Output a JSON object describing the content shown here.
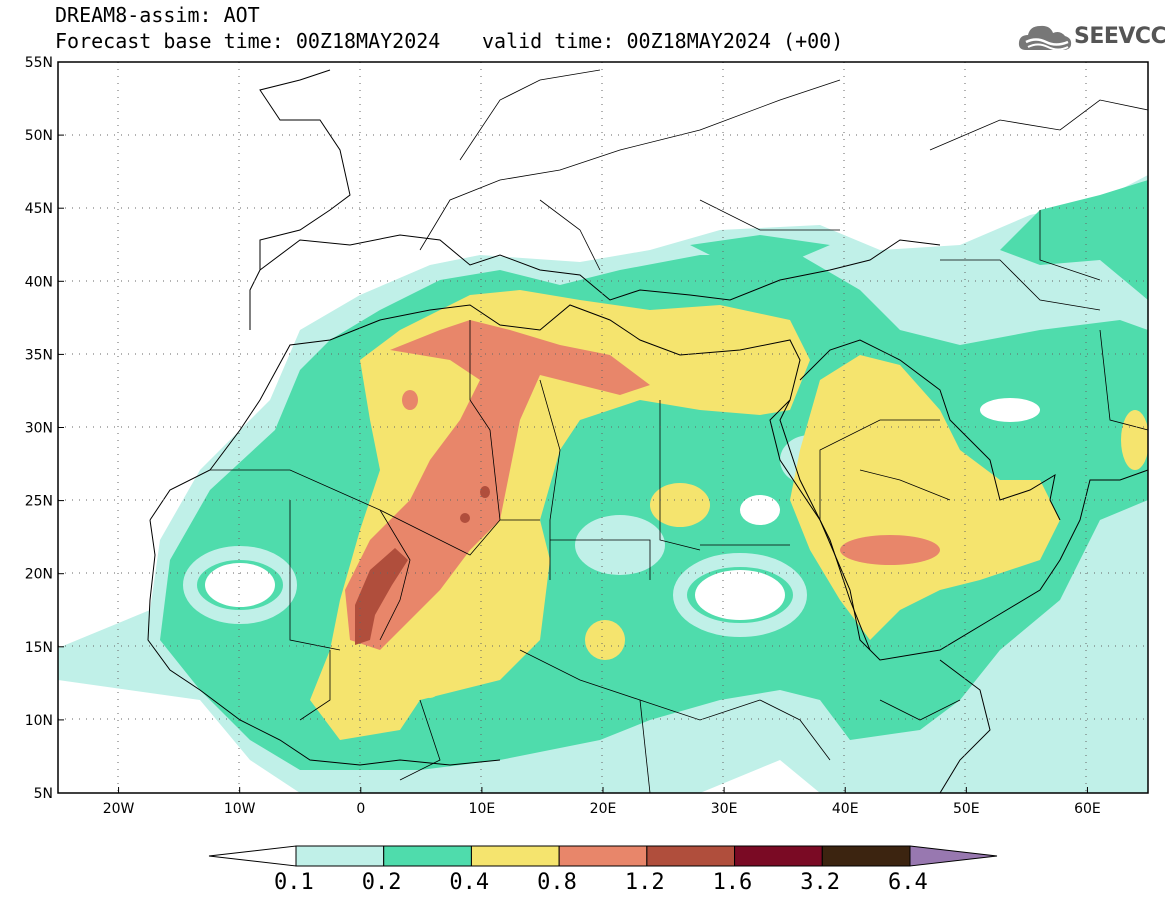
{
  "header": {
    "title": "DREAM8-assim: AOT",
    "base_time": "Forecast base time: 00Z18MAY2024",
    "valid_time": "valid time: 00Z18MAY2024 (+00)"
  },
  "logo": {
    "text": "SEEVCCC",
    "icon": "cloud-icon"
  },
  "map": {
    "lon_range": [
      -25,
      65
    ],
    "lat_range": [
      5,
      55
    ],
    "lat_ticks": [
      "55N",
      "50N",
      "45N",
      "40N",
      "35N",
      "30N",
      "25N",
      "20N",
      "15N",
      "10N",
      "5N"
    ],
    "lon_ticks": [
      "20W",
      "10W",
      "0",
      "10E",
      "20E",
      "30E",
      "40E",
      "50E",
      "60E"
    ],
    "grid": "dotted"
  },
  "colorbar": {
    "labels": [
      "0.1",
      "0.2",
      "0.4",
      "0.8",
      "1.2",
      "1.6",
      "3.2",
      "6.4"
    ],
    "colors": [
      "#ffffff",
      "#c0f0e8",
      "#4fdcac",
      "#f5e46e",
      "#e8866a",
      "#b04e3c",
      "#7a0a24",
      "#3c2410",
      "#9878b0"
    ]
  }
}
